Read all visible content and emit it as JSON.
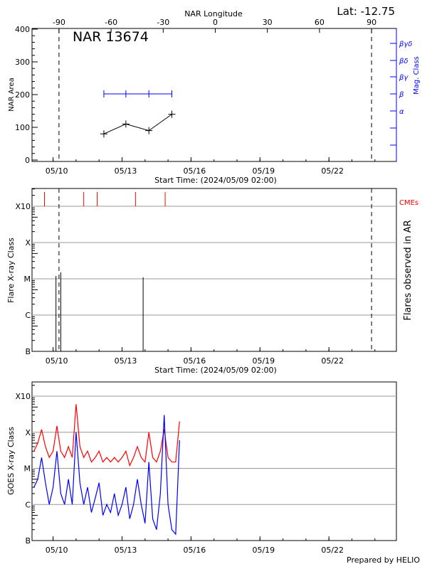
{
  "lat_label": "Lat: -12.75",
  "footer": "Prepared by HELIO",
  "colors": {
    "axis": "#000000",
    "mag": "#0000ff",
    "cme": "#ff0000",
    "grid": "#999999",
    "goes_long": "#ff0000",
    "goes_short": "#0000ff"
  },
  "chart_data": [
    {
      "type": "line",
      "title": "NAR 13674",
      "xlabel": "Start Time: (2024/05/09 02:00)",
      "ylabel": "NAR Area",
      "ylabel_right": "Mag. Class",
      "top_axis_label": "NAR Longitude",
      "top_ticks": [
        "-90",
        "-60",
        "-30",
        "0",
        "30",
        "60",
        "90"
      ],
      "top_tick_values": [
        -90,
        -60,
        -30,
        0,
        30,
        60,
        90
      ],
      "ylim": [
        0,
        400
      ],
      "yticks": [
        "0",
        "100",
        "200",
        "300",
        "400"
      ],
      "xticks": [
        "05/10",
        "05/13",
        "05/16",
        "05/19",
        "05/22"
      ],
      "right_ticks": [
        "",
        "",
        "α",
        "β",
        "βγ",
        "βδ",
        "βγδ"
      ],
      "limb_longitudes": [
        -90,
        90
      ],
      "series": [
        {
          "name": "NAR Area",
          "x": [
            "05/12 05:00",
            "05/13 04:00",
            "05/14 04:00",
            "05/15 04:00"
          ],
          "values": [
            80,
            110,
            90,
            140
          ]
        },
        {
          "name": "Mag. Class",
          "x": [
            "05/12 05:00",
            "05/13 04:00",
            "05/14 04:00",
            "05/15 04:00"
          ],
          "values": [
            "β",
            "β",
            "β",
            "β"
          ]
        }
      ]
    },
    {
      "type": "bar",
      "xlabel": "Start Time: (2024/05/09 02:00)",
      "ylabel": "Flare X-ray Class",
      "ylabel_right": "Flares observed in AR",
      "yticks": [
        "B",
        "C",
        "M",
        "X",
        "X10"
      ],
      "xticks": [
        "05/10",
        "05/13",
        "05/16",
        "05/19",
        "05/22"
      ],
      "grid": true,
      "cme_label": "CMEs",
      "cmes": [
        "05/09 15:00",
        "05/11 08:00",
        "05/11 22:00",
        "05/13 14:00",
        "05/14 21:00"
      ],
      "flares": [
        {
          "time": "05/10 03:00",
          "class": "M1.2"
        },
        {
          "time": "05/10 08:00",
          "class": "M1.5"
        },
        {
          "time": "05/13 22:00",
          "class": "M1.1"
        }
      ]
    },
    {
      "type": "line",
      "ylabel": "GOES X-ray Class",
      "yticks": [
        "B",
        "C",
        "M",
        "X",
        "X10"
      ],
      "xticks": [
        "05/10",
        "05/13",
        "05/16",
        "05/19",
        "05/22"
      ],
      "grid": true,
      "yscale": "log",
      "x": [
        "05/09 04:00",
        "05/09 08:00",
        "05/09 12:00",
        "05/09 16:00",
        "05/09 20:00",
        "05/10 00:00",
        "05/10 04:00",
        "05/10 08:00",
        "05/10 12:00",
        "05/10 16:00",
        "05/10 20:00",
        "05/11 00:00",
        "05/11 04:00",
        "05/11 08:00",
        "05/11 12:00",
        "05/11 16:00",
        "05/11 20:00",
        "05/12 00:00",
        "05/12 04:00",
        "05/12 08:00",
        "05/12 12:00",
        "05/12 16:00",
        "05/12 20:00",
        "05/13 00:00",
        "05/13 04:00",
        "05/13 08:00",
        "05/13 12:00",
        "05/13 16:00",
        "05/13 20:00",
        "05/14 00:00",
        "05/14 04:00",
        "05/14 08:00",
        "05/14 12:00",
        "05/14 16:00",
        "05/14 20:00",
        "05/15 00:00",
        "05/15 04:00",
        "05/15 08:00",
        "05/15 12:00"
      ],
      "series": [
        {
          "values": [
            3e-05,
            5e-05,
            0.00012,
            4e-05,
            2e-05,
            3e-05,
            0.00015,
            3e-05,
            2e-05,
            4e-05,
            2e-05,
            0.0006,
            4e-05,
            2e-05,
            3e-05,
            1.5e-05,
            2e-05,
            3e-05,
            1.5e-05,
            2e-05,
            1.5e-05,
            2e-05,
            1.5e-05,
            2e-05,
            3e-05,
            1.2e-05,
            2e-05,
            4e-05,
            2e-05,
            1.5e-05,
            0.0001,
            2e-05,
            1.5e-05,
            3e-05,
            0.00012,
            2e-05,
            1.5e-05,
            1.5e-05,
            0.0002
          ]
        },
        {
          "values": [
            3e-06,
            5e-06,
            2e-05,
            4e-06,
            1e-06,
            3e-06,
            3e-05,
            2e-06,
            1e-06,
            5e-06,
            1e-06,
            0.0001,
            4e-06,
            1e-06,
            3e-06,
            6e-07,
            1.5e-06,
            4e-06,
            5e-07,
            1e-06,
            6e-07,
            2e-06,
            5e-07,
            1e-06,
            3e-06,
            4e-07,
            1e-06,
            5e-06,
            1e-06,
            3e-07,
            1.5e-05,
            4e-07,
            2e-07,
            2e-06,
            0.0003,
            1e-06,
            2e-07,
            1.5e-07,
            6e-05
          ]
        }
      ]
    }
  ]
}
